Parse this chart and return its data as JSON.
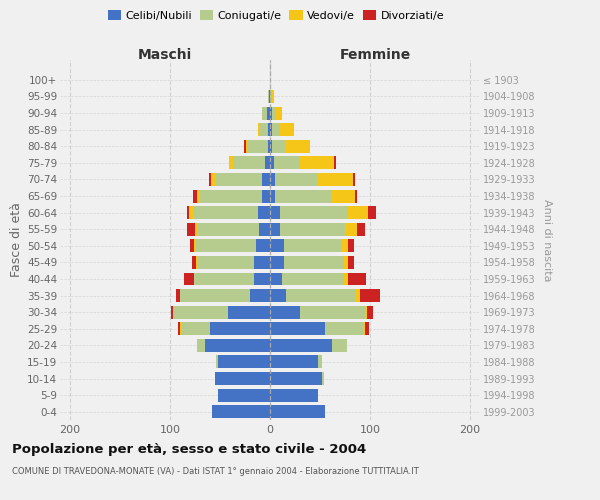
{
  "age_groups": [
    "0-4",
    "5-9",
    "10-14",
    "15-19",
    "20-24",
    "25-29",
    "30-34",
    "35-39",
    "40-44",
    "45-49",
    "50-54",
    "55-59",
    "60-64",
    "65-69",
    "70-74",
    "75-79",
    "80-84",
    "85-89",
    "90-94",
    "95-99",
    "100+"
  ],
  "anni_nascita": [
    "1999-2003",
    "1994-1998",
    "1989-1993",
    "1984-1988",
    "1979-1983",
    "1974-1978",
    "1969-1973",
    "1964-1968",
    "1959-1963",
    "1954-1958",
    "1949-1953",
    "1944-1948",
    "1939-1943",
    "1934-1938",
    "1929-1933",
    "1924-1928",
    "1919-1923",
    "1914-1918",
    "1909-1913",
    "1904-1908",
    "≤ 1903"
  ],
  "maschi_celibi": [
    58,
    52,
    55,
    52,
    65,
    60,
    42,
    20,
    16,
    16,
    14,
    11,
    12,
    8,
    8,
    5,
    2,
    2,
    3,
    1,
    0
  ],
  "maschi_coniugati": [
    0,
    0,
    0,
    2,
    8,
    28,
    55,
    70,
    60,
    56,
    60,
    62,
    65,
    62,
    46,
    32,
    20,
    8,
    5,
    1,
    0
  ],
  "maschi_vedovi": [
    0,
    0,
    0,
    0,
    0,
    2,
    0,
    0,
    0,
    2,
    2,
    2,
    4,
    3,
    5,
    4,
    2,
    2,
    0,
    0,
    0
  ],
  "maschi_divorziati": [
    0,
    0,
    0,
    0,
    0,
    2,
    2,
    4,
    10,
    4,
    4,
    8,
    2,
    4,
    2,
    0,
    2,
    0,
    0,
    0,
    0
  ],
  "femmine_nubili": [
    55,
    48,
    52,
    48,
    62,
    55,
    30,
    16,
    12,
    14,
    14,
    10,
    10,
    5,
    5,
    4,
    2,
    2,
    2,
    0,
    0
  ],
  "femmine_coniugate": [
    0,
    0,
    2,
    4,
    15,
    38,
    65,
    70,
    62,
    60,
    58,
    65,
    68,
    56,
    42,
    26,
    14,
    8,
    4,
    2,
    0
  ],
  "femmine_vedove": [
    0,
    0,
    0,
    0,
    0,
    2,
    2,
    4,
    4,
    4,
    6,
    12,
    20,
    24,
    36,
    34,
    24,
    14,
    6,
    2,
    0
  ],
  "femmine_divorziate": [
    0,
    0,
    0,
    0,
    0,
    4,
    6,
    20,
    18,
    6,
    6,
    8,
    8,
    2,
    2,
    2,
    0,
    0,
    0,
    0,
    0
  ],
  "colors_celibi": "#4472C4",
  "colors_coniugati": "#B5CC8E",
  "colors_vedovi": "#F5C518",
  "colors_divorziati": "#CC2222",
  "xlim": 210,
  "background_color": "#f0f0f0",
  "grid_color": "#cccccc",
  "title": "Popolazione per età, sesso e stato civile - 2004",
  "subtitle": "COMUNE DI TRAVEDONA-MONATE (VA) - Dati ISTAT 1° gennaio 2004 - Elaborazione TUTTITALIA.IT",
  "ylabel": "Fasce di età",
  "ylabel_right": "Anni di nascita",
  "label_maschi": "Maschi",
  "label_femmine": "Femmine",
  "legend_celibi": "Celibi/Nubili",
  "legend_coniugati": "Coniugati/e",
  "legend_vedovi": "Vedovi/e",
  "legend_divorziati": "Divorziati/e"
}
